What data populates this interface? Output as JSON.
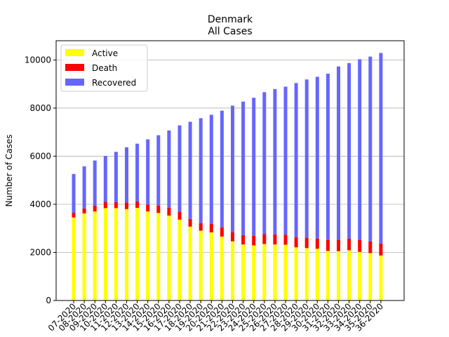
{
  "chart_data": {
    "type": "bar",
    "stacked": true,
    "title": "Denmark",
    "subtitle": "All Cases",
    "xlabel": "",
    "ylabel": "Number of Cases",
    "ylim": [
      0,
      10800
    ],
    "yticks": [
      0,
      2000,
      4000,
      6000,
      8000,
      10000
    ],
    "grid": "horizontal",
    "legend_position": "top-left",
    "colors": {
      "Active": "#ffff00",
      "Death": "#ff0000",
      "Recovered": "#6666ff"
    },
    "categories": [
      "07-2020",
      "08-2020",
      "09-2020",
      "10-2020",
      "11-2020",
      "12-2020",
      "13-2020",
      "14-2020",
      "15-2020",
      "16-2020",
      "17-2020",
      "18-2020",
      "19-2020",
      "20-2020",
      "21-2020",
      "22-2020",
      "23-2020",
      "24-2020",
      "25-2020",
      "26-2020",
      "27-2020",
      "28-2020",
      "29-2020",
      "30-2020",
      "31-2020",
      "32-2020",
      "33-2020",
      "34-2020",
      "35-2020",
      "36-2020"
    ],
    "series": [
      {
        "name": "Active",
        "values": [
          3450,
          3620,
          3700,
          3840,
          3840,
          3800,
          3850,
          3700,
          3640,
          3530,
          3360,
          3070,
          2900,
          2830,
          2660,
          2460,
          2330,
          2290,
          2350,
          2330,
          2320,
          2210,
          2180,
          2150,
          2060,
          2050,
          2090,
          2020,
          1970,
          1870
        ]
      },
      {
        "name": "Death",
        "values": [
          200,
          210,
          240,
          260,
          250,
          270,
          270,
          290,
          310,
          330,
          330,
          320,
          320,
          360,
          380,
          380,
          390,
          400,
          410,
          420,
          410,
          420,
          430,
          430,
          460,
          480,
          480,
          490,
          490,
          500
        ]
      },
      {
        "name": "Recovered",
        "values": [
          1610,
          1750,
          1880,
          1910,
          2090,
          2300,
          2400,
          2710,
          2920,
          3210,
          3590,
          4040,
          4360,
          4530,
          4850,
          5260,
          5550,
          5740,
          5900,
          6040,
          6160,
          6410,
          6580,
          6720,
          6910,
          7200,
          7300,
          7520,
          7680,
          7920
        ]
      }
    ]
  }
}
